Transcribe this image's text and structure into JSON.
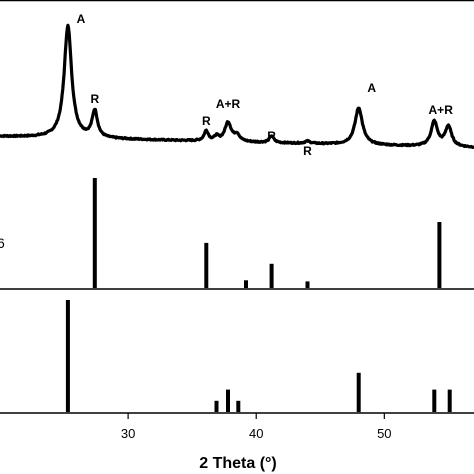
{
  "chart_data": [
    {
      "type": "line",
      "panel": "measured pattern",
      "xlabel": "2 Theta (°)",
      "ylabel": "",
      "xlim": [
        20,
        57
      ],
      "x_ticks": [
        30,
        40,
        50
      ],
      "x_tick_labels": [
        "30",
        "40",
        "50"
      ],
      "series": [
        {
          "peaks": [
            {
              "x": 25.3,
              "height": 1.0,
              "width": 0.35
            },
            {
              "x": 27.4,
              "height": 0.24,
              "width": 0.25
            },
            {
              "x": 36.1,
              "height": 0.09,
              "width": 0.2
            },
            {
              "x": 36.9,
              "height": 0.04,
              "width": 0.2
            },
            {
              "x": 37.8,
              "height": 0.17,
              "width": 0.3
            },
            {
              "x": 38.5,
              "height": 0.06,
              "width": 0.25
            },
            {
              "x": 41.2,
              "height": 0.06,
              "width": 0.2
            },
            {
              "x": 44.0,
              "height": 0.02,
              "width": 0.25
            },
            {
              "x": 48.0,
              "height": 0.33,
              "width": 0.35
            },
            {
              "x": 53.9,
              "height": 0.22,
              "width": 0.3
            },
            {
              "x": 55.0,
              "height": 0.18,
              "width": 0.3
            }
          ],
          "baseline_start": 0.05,
          "baseline_end": -0.05
        }
      ],
      "annotations": [
        {
          "text": "A",
          "x": 25.3
        },
        {
          "text": "R",
          "x": 27.4
        },
        {
          "text": "R",
          "x": 36.1
        },
        {
          "text": "A+R",
          "x": 37.8
        },
        {
          "text": "R",
          "x": 41.2
        },
        {
          "text": "R",
          "x": 44.0
        },
        {
          "text": "A",
          "x": 48.0
        },
        {
          "text": "A+R",
          "x": 54.4
        }
      ]
    },
    {
      "type": "bar",
      "panel": "rutile reference",
      "stub_label": "6",
      "x": [
        27.4,
        36.1,
        39.2,
        41.2,
        44.0,
        54.3
      ],
      "values": [
        100,
        41,
        7,
        22,
        6,
        60
      ]
    },
    {
      "type": "bar",
      "panel": "anatase reference",
      "x": [
        25.3,
        36.9,
        37.8,
        38.6,
        48.0,
        53.9,
        55.1
      ],
      "values": [
        100,
        10,
        20,
        10,
        35,
        20,
        20
      ]
    }
  ]
}
